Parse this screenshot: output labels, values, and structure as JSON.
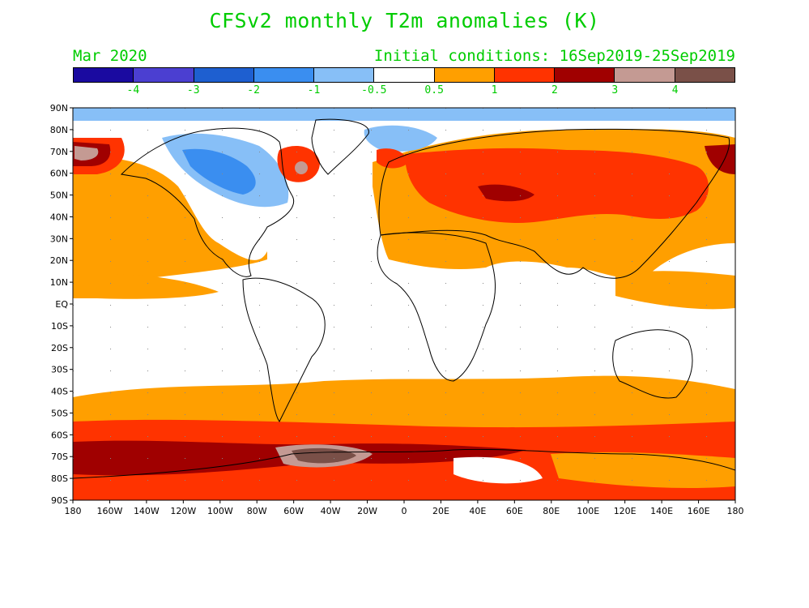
{
  "title": "CFSv2 monthly T2m anomalies (K)",
  "valid_month": "Mar 2020",
  "initial_conditions": "Initial conditions: 16Sep2019-25Sep2019",
  "colorbar": {
    "colors": [
      "#1a0aa0",
      "#4b3fd1",
      "#1e5fd0",
      "#3a8ef0",
      "#87bff7",
      "#ffffff",
      "#ff9f00",
      "#ff3300",
      "#a00000",
      "#c49a93",
      "#7a5048"
    ],
    "labels": [
      "-4",
      "-3",
      "-2",
      "-1",
      "-0.5",
      "0.5",
      "1",
      "2",
      "3",
      "4"
    ]
  },
  "map": {
    "lat_labels": [
      "90N",
      "80N",
      "70N",
      "60N",
      "50N",
      "40N",
      "30N",
      "20N",
      "10N",
      "EQ",
      "10S",
      "20S",
      "30S",
      "40S",
      "50S",
      "60S",
      "70S",
      "80S",
      "90S"
    ],
    "lon_labels": [
      "180",
      "160W",
      "140W",
      "120W",
      "100W",
      "80W",
      "60W",
      "40W",
      "20W",
      "0",
      "20E",
      "40E",
      "60E",
      "80E",
      "100E",
      "120E",
      "140E",
      "160E",
      "180"
    ],
    "ocean_color": "#ffffff",
    "gridline": "dotted"
  }
}
